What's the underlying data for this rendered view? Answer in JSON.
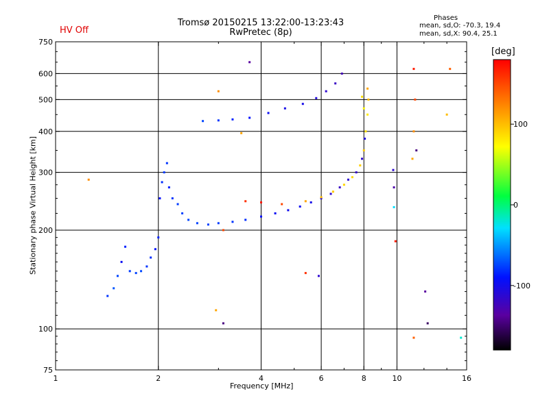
{
  "header": {
    "hv_status": "HV Off",
    "hv_color": "#e00000",
    "title_line1": "Tromsø 20150215 13:22:00-13:23:43",
    "title_line2": "RwPretec (8p)",
    "phases_title": "Phases",
    "phases_o": "mean, sd,O: -70.3, 19.4",
    "phases_x": "mean, sd,X:  90.4, 25.1"
  },
  "chart_data": {
    "type": "scatter",
    "xlabel": "Frequency [MHz]",
    "ylabel": "Stationary phase Virtual Height [km]",
    "xscale": "log",
    "yscale": "log",
    "xlim": [
      1,
      16
    ],
    "ylim": [
      75,
      750
    ],
    "x_ticks": [
      1,
      2,
      4,
      6,
      8,
      10,
      16
    ],
    "x_ticklabels": [
      "1",
      "2",
      "4",
      "6",
      "8",
      "10",
      "16"
    ],
    "x_gridlines": [
      2,
      4,
      6,
      8,
      10
    ],
    "y_ticks": [
      75,
      100,
      200,
      300,
      400,
      500,
      600,
      750
    ],
    "y_ticklabels": [
      "75",
      "100",
      "200",
      "300",
      "400",
      "500",
      "600",
      "750"
    ],
    "y_gridlines": [
      100,
      200,
      300,
      400,
      500,
      600
    ],
    "grid": true,
    "colorbar": {
      "label": "[deg]",
      "range": [
        -180,
        180
      ],
      "ticks": [
        100,
        0,
        -100
      ],
      "ticklabels": [
        "100",
        "0",
        "-100"
      ]
    },
    "series": [
      {
        "points": [
          [
            1.42,
            126,
            -80
          ],
          [
            1.48,
            133,
            -70
          ],
          [
            1.52,
            145,
            -75
          ],
          [
            1.56,
            160,
            -95
          ],
          [
            1.6,
            178,
            -85
          ],
          [
            1.65,
            150,
            -78
          ],
          [
            1.72,
            148,
            -76
          ],
          [
            1.78,
            150,
            -74
          ],
          [
            1.85,
            155,
            -80
          ],
          [
            1.9,
            165,
            -82
          ],
          [
            1.96,
            175,
            -90
          ],
          [
            2.0,
            190,
            -85
          ],
          [
            2.02,
            250,
            -90
          ],
          [
            2.05,
            280,
            -82
          ],
          [
            2.08,
            300,
            -78
          ],
          [
            2.12,
            320,
            -80
          ],
          [
            2.15,
            270,
            -85
          ],
          [
            2.2,
            250,
            -80
          ],
          [
            2.28,
            240,
            -78
          ],
          [
            2.35,
            225,
            -76
          ],
          [
            2.45,
            215,
            -75
          ],
          [
            2.6,
            210,
            -76
          ],
          [
            2.8,
            208,
            -77
          ],
          [
            3.0,
            210,
            -78
          ],
          [
            3.3,
            212,
            -80
          ],
          [
            3.6,
            215,
            -82
          ],
          [
            4.0,
            220,
            -90
          ],
          [
            4.4,
            225,
            -95
          ],
          [
            4.8,
            230,
            -97
          ],
          [
            5.2,
            236,
            -95
          ],
          [
            5.6,
            243,
            -100
          ],
          [
            6.0,
            250,
            -105
          ],
          [
            6.4,
            258,
            -110
          ],
          [
            6.8,
            270,
            -115
          ],
          [
            7.2,
            285,
            -110
          ],
          [
            7.6,
            300,
            -112
          ],
          [
            7.9,
            330,
            -110
          ],
          [
            8.05,
            380,
            -105
          ],
          [
            2.7,
            430,
            -75
          ],
          [
            3.0,
            432,
            -80
          ],
          [
            3.3,
            435,
            -85
          ],
          [
            3.7,
            440,
            -90
          ],
          [
            4.2,
            455,
            -95
          ],
          [
            4.7,
            470,
            -100
          ],
          [
            5.3,
            485,
            -100
          ],
          [
            5.8,
            505,
            -105
          ],
          [
            6.2,
            530,
            -110
          ],
          [
            6.6,
            560,
            -115
          ],
          [
            6.9,
            600,
            -120
          ]
        ]
      },
      {
        "points": [
          [
            3.6,
            245,
            160
          ],
          [
            4.0,
            243,
            170
          ],
          [
            4.6,
            240,
            150
          ],
          [
            5.4,
            245,
            110
          ],
          [
            6.0,
            252,
            100
          ],
          [
            6.5,
            262,
            95
          ],
          [
            7.0,
            275,
            90
          ],
          [
            7.4,
            290,
            88
          ],
          [
            7.8,
            315,
            92
          ],
          [
            8.0,
            350,
            95
          ],
          [
            8.1,
            400,
            85
          ],
          [
            8.2,
            450,
            80
          ],
          [
            8.25,
            500,
            100
          ],
          [
            8.2,
            540,
            110
          ],
          [
            7.9,
            510,
            85
          ],
          [
            8.0,
            470,
            75
          ],
          [
            11.2,
            620,
            170
          ],
          [
            11.3,
            500,
            150
          ],
          [
            11.2,
            400,
            120
          ],
          [
            11.1,
            330,
            110
          ],
          [
            1.25,
            285,
            120
          ],
          [
            2.95,
            114,
            110
          ],
          [
            5.4,
            148,
            160
          ],
          [
            11.2,
            94,
            140
          ],
          [
            14.3,
            620,
            140
          ],
          [
            14.0,
            450,
            100
          ],
          [
            9.9,
            185,
            170
          ],
          [
            3.0,
            530,
            120
          ],
          [
            3.5,
            395,
            110
          ],
          [
            3.1,
            200,
            150
          ]
        ]
      },
      {
        "points": [
          [
            3.7,
            650,
            -130
          ],
          [
            3.1,
            104,
            -140
          ],
          [
            12.3,
            104,
            -150
          ],
          [
            12.1,
            130,
            -130
          ],
          [
            9.75,
            305,
            -110
          ],
          [
            9.8,
            270,
            -125
          ],
          [
            11.4,
            350,
            -140
          ],
          [
            5.9,
            145,
            -110
          ],
          [
            9.8,
            235,
            -30
          ],
          [
            15.4,
            94,
            -20
          ]
        ]
      }
    ]
  }
}
